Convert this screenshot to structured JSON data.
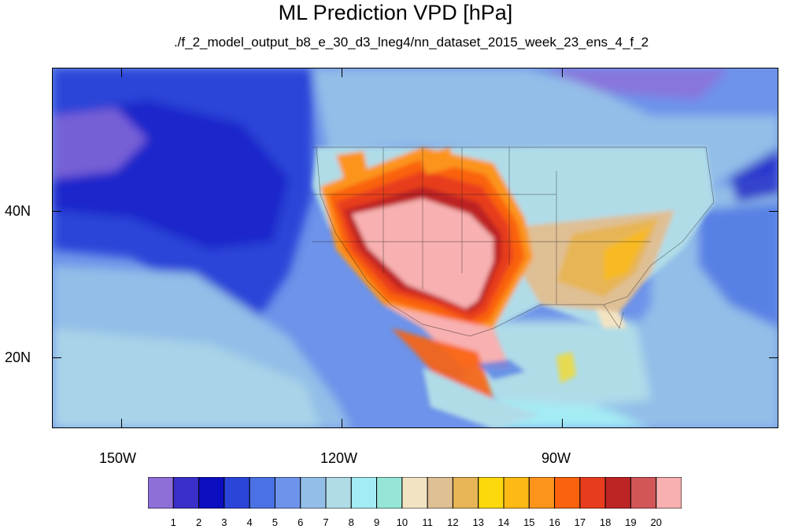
{
  "title": "ML Prediction VPD [hPa]",
  "subtitle": "./f_2_model_output_b8_e_30_d3_lneg4/nn_dataset_2015_week_23_ens_4_f_2",
  "map": {
    "projection": "cylindrical equidistant",
    "lon_range": [
      -159,
      -60
    ],
    "lat_range": [
      11,
      60
    ],
    "lon_labels": [
      "150W",
      "120W",
      "90W"
    ],
    "lat_labels": [
      "40N",
      "20N"
    ]
  },
  "colorbar": {
    "labels": [
      "1",
      "2",
      "3",
      "4",
      "5",
      "6",
      "7",
      "8",
      "9",
      "10",
      "11",
      "12",
      "13",
      "14",
      "15",
      "16",
      "17",
      "18",
      "19",
      "20"
    ],
    "colors": [
      "#8e6fd8",
      "#3b2fc9",
      "#0c0ec0",
      "#2b45d8",
      "#4a72e4",
      "#6d93ea",
      "#93bee8",
      "#b0dce8",
      "#a4ecf4",
      "#95e6d6",
      "#f2e4c2",
      "#dfbf94",
      "#e7b556",
      "#fcd80c",
      "#fdba14",
      "#fc941c",
      "#fa620e",
      "#e83c1e",
      "#bd2424",
      "#d25658",
      "#f8b0b0"
    ]
  },
  "colors": {
    "ocean_deep": "#2b45d8",
    "ocean_mid": "#6d93ea",
    "ocean_light": "#93bee8",
    "land_cool": "#b0dce8",
    "hot_core": "#f8b0b0"
  }
}
